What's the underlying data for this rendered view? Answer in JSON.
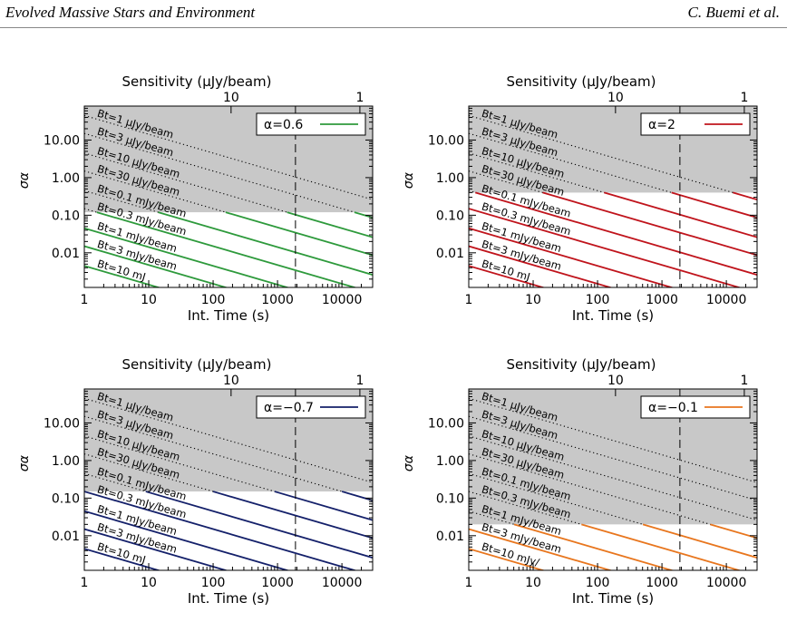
{
  "header": {
    "left": "Evolved Massive Stars and Environment",
    "right": "C. Buemi et al."
  },
  "chart_data": [
    {
      "type": "line",
      "xlabel": "Int. Time (s)",
      "ylabel": "σα",
      "top_axis_label": "Sensitivity (μJy/beam)",
      "x_scale": "log",
      "y_scale": "log",
      "xlim": [
        1,
        30000
      ],
      "ylim": [
        0.0012,
        80
      ],
      "xticks": [
        "1",
        "10",
        "100",
        "1000",
        "10000"
      ],
      "yticks": [
        "0.01",
        "0.10",
        "1.00",
        "10.00"
      ],
      "top_ticks": [
        "10",
        "1"
      ],
      "vline_x": 1900,
      "legend": "α=0.6",
      "color": "#2e9a3c",
      "shade_above": 0.12,
      "curves": [
        {
          "label": "Bt=1 μJy/beam",
          "value_at_1s": 45
        },
        {
          "label": "Bt=3 μJy/beam",
          "value_at_1s": 15
        },
        {
          "label": "Bt=10 μJy/beam",
          "value_at_1s": 4.5
        },
        {
          "label": "Bt=30 μJy/beam",
          "value_at_1s": 1.5
        },
        {
          "label": "Bt=0.1 mJy/beam",
          "value_at_1s": 0.45
        },
        {
          "label": "Bt=0.3 mJy/beam",
          "value_at_1s": 0.15
        },
        {
          "label": "Bt=1 mJy/beam",
          "value_at_1s": 0.045
        },
        {
          "label": "Bt=3 mJy/beam",
          "value_at_1s": 0.015
        },
        {
          "label": "Bt=10 mJ",
          "value_at_1s": 0.0045
        }
      ]
    },
    {
      "type": "line",
      "xlabel": "Int. Time (s)",
      "ylabel": "σα",
      "top_axis_label": "Sensitivity (μJy/beam)",
      "x_scale": "log",
      "y_scale": "log",
      "xlim": [
        1,
        30000
      ],
      "ylim": [
        0.0012,
        80
      ],
      "xticks": [
        "1",
        "10",
        "100",
        "1000",
        "10000"
      ],
      "yticks": [
        "0.01",
        "0.10",
        "1.00",
        "10.00"
      ],
      "top_ticks": [
        "10",
        "1"
      ],
      "vline_x": 1900,
      "legend": "α=2",
      "color": "#c0141c",
      "shade_above": 0.4,
      "curves": [
        {
          "label": "Bt=1 μJy/beam",
          "value_at_1s": 45
        },
        {
          "label": "Bt=3 μJy/beam",
          "value_at_1s": 15
        },
        {
          "label": "Bt=10 μJy/beam",
          "value_at_1s": 4.5
        },
        {
          "label": "Bt=30 μJy/beam",
          "value_at_1s": 1.5
        },
        {
          "label": "Bt=0.1 mJy/beam",
          "value_at_1s": 0.45
        },
        {
          "label": "Bt=0.3 mJy/beam",
          "value_at_1s": 0.15
        },
        {
          "label": "Bt=1 mJy/beam",
          "value_at_1s": 0.045
        },
        {
          "label": "Bt=3 mJy/beam",
          "value_at_1s": 0.015
        },
        {
          "label": "Bt=10 mJ",
          "value_at_1s": 0.0045
        }
      ]
    },
    {
      "type": "line",
      "xlabel": "Int. Time (s)",
      "ylabel": "σα",
      "top_axis_label": "Sensitivity (μJy/beam)",
      "x_scale": "log",
      "y_scale": "log",
      "xlim": [
        1,
        30000
      ],
      "ylim": [
        0.0012,
        80
      ],
      "xticks": [
        "1",
        "10",
        "100",
        "1000",
        "10000"
      ],
      "yticks": [
        "0.01",
        "0.10",
        "1.00",
        "10.00"
      ],
      "top_ticks": [
        "10",
        "1"
      ],
      "vline_x": 1900,
      "legend": "α=−0.7",
      "color": "#14206a",
      "shade_above": 0.15,
      "curves": [
        {
          "label": "Bt=1 μJy/beam",
          "value_at_1s": 45
        },
        {
          "label": "Bt=3 μJy/beam",
          "value_at_1s": 15
        },
        {
          "label": "Bt=10 μJy/beam",
          "value_at_1s": 4.5
        },
        {
          "label": "Bt=30 μJy/beam",
          "value_at_1s": 1.5
        },
        {
          "label": "Bt=0.1 mJy/beam",
          "value_at_1s": 0.45
        },
        {
          "label": "Bt=0.3 mJy/beam",
          "value_at_1s": 0.15
        },
        {
          "label": "Bt=1 mJy/beam",
          "value_at_1s": 0.045
        },
        {
          "label": "Bt=3 mJy/beam",
          "value_at_1s": 0.015
        },
        {
          "label": "Bt=10 mJ",
          "value_at_1s": 0.0045
        }
      ]
    },
    {
      "type": "line",
      "xlabel": "Int. Time (s)",
      "ylabel": "σα",
      "top_axis_label": "Sensitivity (μJy/beam)",
      "x_scale": "log",
      "y_scale": "log",
      "xlim": [
        1,
        30000
      ],
      "ylim": [
        0.0012,
        80
      ],
      "xticks": [
        "1",
        "10",
        "100",
        "1000",
        "10000"
      ],
      "yticks": [
        "0.01",
        "0.10",
        "1.00",
        "10.00"
      ],
      "top_ticks": [
        "10",
        "1"
      ],
      "vline_x": 1900,
      "legend": "α=−0.1",
      "color": "#e8761e",
      "shade_above": 0.02,
      "curves": [
        {
          "label": "Bt=1 μJy/beam",
          "value_at_1s": 45
        },
        {
          "label": "Bt=3 μJy/beam",
          "value_at_1s": 15
        },
        {
          "label": "Bt=10 μJy/beam",
          "value_at_1s": 4.5
        },
        {
          "label": "Bt=30 μJy/beam",
          "value_at_1s": 1.5
        },
        {
          "label": "Bt=0.1 mJy/beam",
          "value_at_1s": 0.45
        },
        {
          "label": "Bt=0.3 mJy/beam",
          "value_at_1s": 0.15
        },
        {
          "label": "Bt=1 mJy/beam",
          "value_at_1s": 0.045
        },
        {
          "label": "Bt=3 mJy/beam",
          "value_at_1s": 0.015
        },
        {
          "label": "Bt=10 mJy/",
          "value_at_1s": 0.0045
        }
      ]
    }
  ]
}
